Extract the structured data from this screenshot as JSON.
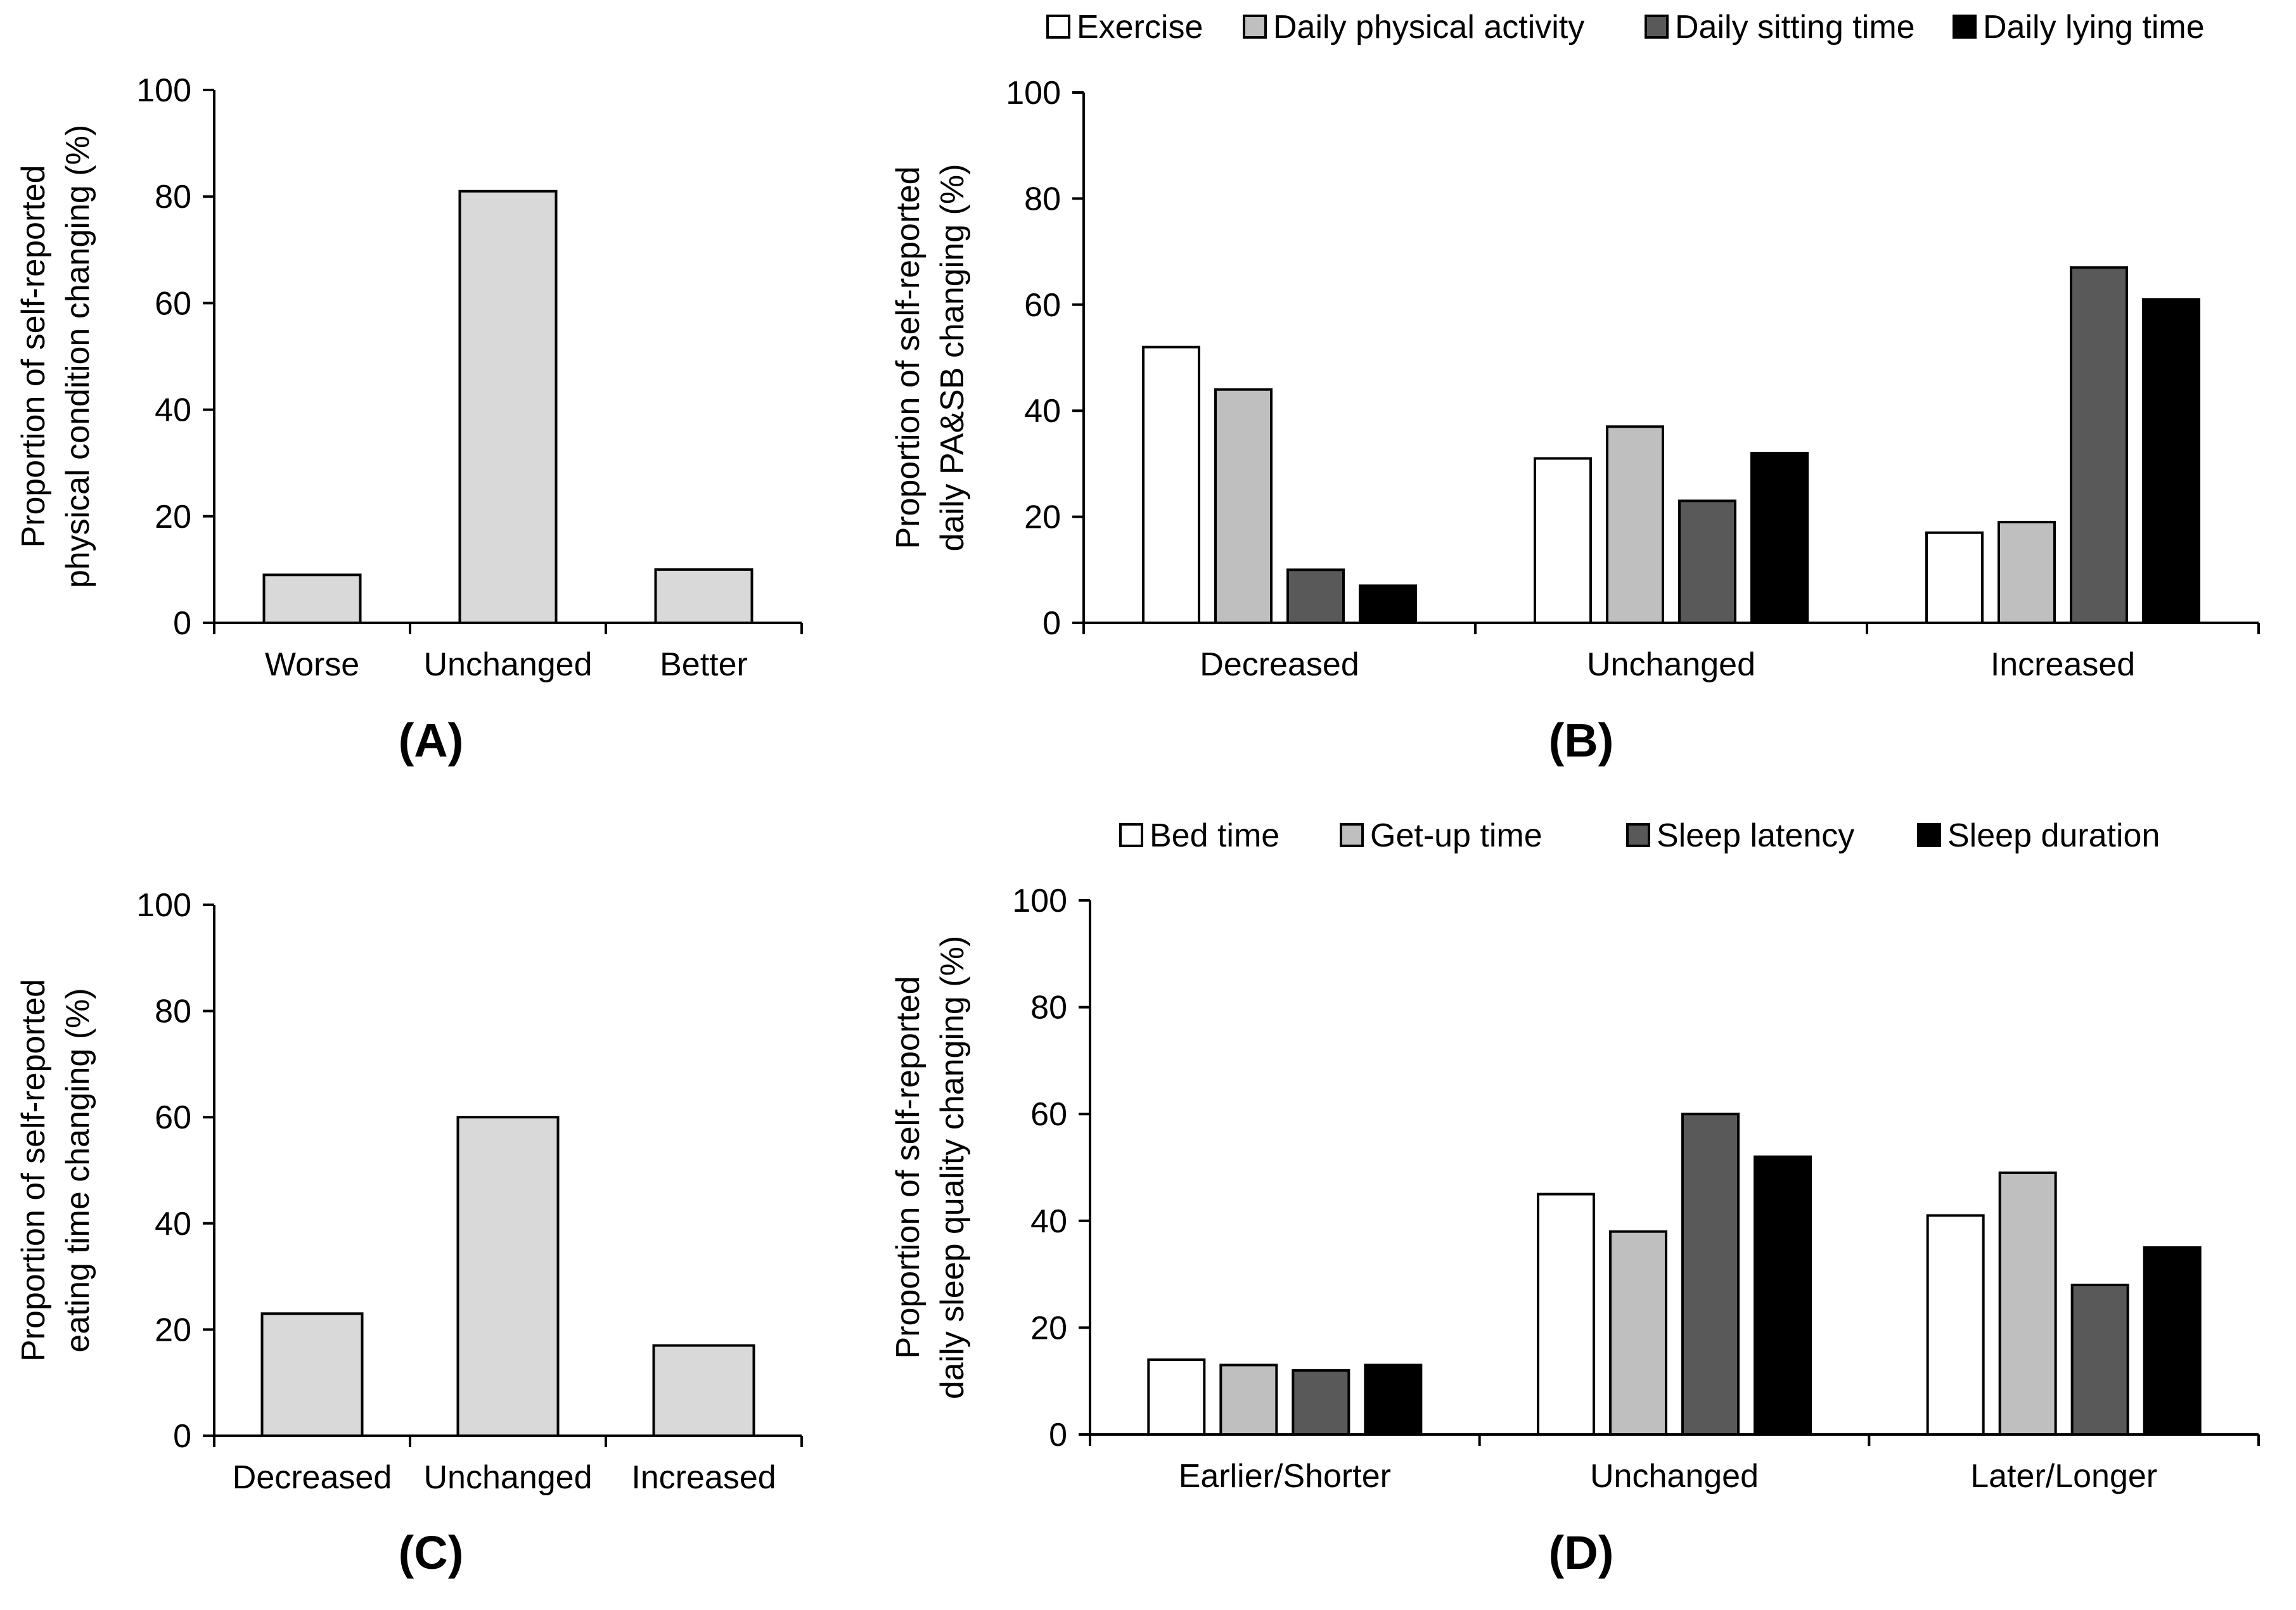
{
  "chart_data": [
    {
      "id": "A",
      "type": "bar",
      "panel_label": "(A)",
      "ylabel_lines": [
        "Proportion of self-reported",
        "physical condition changing (%)"
      ],
      "categories": [
        "Worse",
        "Unchanged",
        "Better"
      ],
      "series": [
        {
          "name": "Physical condition",
          "color": "#d9d9d9",
          "values": [
            9,
            81,
            10
          ]
        }
      ],
      "ylim": [
        0,
        100
      ],
      "yticks": [
        0,
        20,
        40,
        60,
        80,
        100
      ],
      "show_legend": false,
      "grid": false
    },
    {
      "id": "B",
      "type": "bar",
      "panel_label": "(B)",
      "ylabel_lines": [
        "Proportion of self-reported",
        "daily PA&SB changing (%)"
      ],
      "categories": [
        "Decreased",
        "Unchanged",
        "Increased"
      ],
      "series": [
        {
          "name": "Exercise",
          "color": "#ffffff",
          "values": [
            52,
            31,
            17
          ]
        },
        {
          "name": "Daily physical activity",
          "color": "#bfbfbf",
          "values": [
            44,
            37,
            19
          ]
        },
        {
          "name": "Daily sitting time",
          "color": "#595959",
          "values": [
            10,
            23,
            67
          ]
        },
        {
          "name": "Daily lying time",
          "color": "#000000",
          "values": [
            7,
            32,
            61
          ]
        }
      ],
      "ylim": [
        0,
        100
      ],
      "yticks": [
        0,
        20,
        40,
        60,
        80,
        100
      ],
      "show_legend": true,
      "legend_position": "top",
      "grid": false
    },
    {
      "id": "C",
      "type": "bar",
      "panel_label": "(C)",
      "ylabel_lines": [
        "Proportion of self-reported",
        "eating time changing (%)"
      ],
      "categories": [
        "Decreased",
        "Unchanged",
        "Increased"
      ],
      "series": [
        {
          "name": "Eating time",
          "color": "#d9d9d9",
          "values": [
            23,
            60,
            17
          ]
        }
      ],
      "ylim": [
        0,
        100
      ],
      "yticks": [
        0,
        20,
        40,
        60,
        80,
        100
      ],
      "show_legend": false,
      "grid": false
    },
    {
      "id": "D",
      "type": "bar",
      "panel_label": "(D)",
      "ylabel_lines": [
        "Proportion of self-reported",
        "daily sleep quality changing (%)"
      ],
      "categories": [
        "Earlier/Shorter",
        "Unchanged",
        "Later/Longer"
      ],
      "series": [
        {
          "name": "Bed time",
          "color": "#ffffff",
          "values": [
            14,
            45,
            41
          ]
        },
        {
          "name": "Get-up time",
          "color": "#bfbfbf",
          "values": [
            13,
            38,
            49
          ]
        },
        {
          "name": "Sleep latency",
          "color": "#595959",
          "values": [
            12,
            60,
            28
          ]
        },
        {
          "name": "Sleep duration",
          "color": "#000000",
          "values": [
            13,
            52,
            35
          ]
        }
      ],
      "ylim": [
        0,
        100
      ],
      "yticks": [
        0,
        20,
        40,
        60,
        80,
        100
      ],
      "show_legend": true,
      "legend_position": "top",
      "grid": false
    }
  ]
}
